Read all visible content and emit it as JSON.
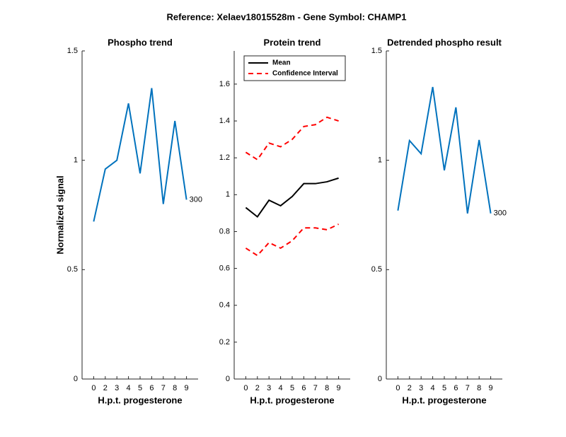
{
  "title": "Reference:  Xelaev18015528m - Gene Symbol:  CHAMP1",
  "chart_data": [
    {
      "type": "line",
      "title": "Phospho trend",
      "xlabel": "H.p.t. progesterone",
      "ylabel": "Normalized signal",
      "categories": [
        "0",
        "2",
        "3",
        "4",
        "5",
        "6",
        "7",
        "8",
        "9"
      ],
      "series": [
        {
          "color": "#0072bd",
          "values": [
            0.72,
            0.96,
            1.0,
            1.26,
            0.94,
            1.33,
            0.8,
            1.18,
            0.82
          ]
        }
      ],
      "annotation": "300",
      "ylim": [
        0,
        1.5
      ],
      "yticks": [
        0,
        0.5,
        1,
        1.5
      ]
    },
    {
      "type": "band-line",
      "title": "Protein trend",
      "xlabel": "H.p.t. progesterone",
      "categories": [
        "0",
        "2",
        "3",
        "4",
        "5",
        "6",
        "7",
        "8",
        "9"
      ],
      "series": [
        {
          "name": "Mean",
          "color": "#000000",
          "values": [
            0.93,
            0.88,
            0.97,
            0.94,
            0.99,
            1.06,
            1.06,
            1.07,
            1.09
          ]
        },
        {
          "name": "Confidence Interval",
          "color": "#ff0000",
          "dashed": true,
          "upper": [
            1.23,
            1.19,
            1.28,
            1.26,
            1.3,
            1.37,
            1.38,
            1.42,
            1.4
          ],
          "lower": [
            0.71,
            0.67,
            0.74,
            0.71,
            0.75,
            0.82,
            0.82,
            0.81,
            0.84
          ]
        }
      ],
      "legend": "upper-left",
      "ylim": [
        0,
        1.78
      ],
      "yticks": [
        0,
        0.2,
        0.4,
        0.6,
        0.8,
        1,
        1.2,
        1.4,
        1.6
      ]
    },
    {
      "type": "line",
      "title": "Detrended phospho result",
      "xlabel": "H.p.t. progesterone",
      "categories": [
        "0",
        "2",
        "3",
        "4",
        "5",
        "6",
        "7",
        "8",
        "9"
      ],
      "series": [
        {
          "color": "#0072bd",
          "values": [
            0.77,
            1.09,
            1.03,
            1.335,
            0.954,
            1.242,
            0.757,
            1.093,
            0.757
          ]
        }
      ],
      "annotation": "300",
      "ylim": [
        0,
        1.5
      ],
      "yticks": [
        0,
        0.5,
        1,
        1.5
      ]
    }
  ]
}
